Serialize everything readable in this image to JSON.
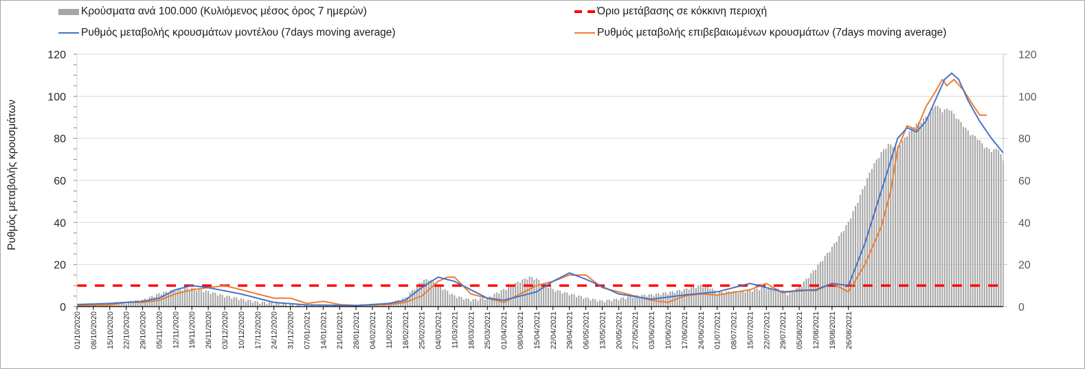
{
  "legend": {
    "bars": "Κρούσματα ανά 100.000 (Κυλιόμενος μέσος όρος 7 ημερών)",
    "model": "Ρυθμός μεταβολής κρουσμάτων μοντέλου (7days moving average)",
    "threshold": "Όριο μετάβασης σε κόκκινη περιοχή",
    "confirmed": "Ρυθμός μεταβολής επιβεβαιωμένων κρουσμάτων (7days moving average)"
  },
  "colors": {
    "bars": "#a5a5a5",
    "model": "#4472c4",
    "confirmed": "#ed7d31",
    "threshold": "#ff0000",
    "grid": "#d9d9d9"
  },
  "chart_data": {
    "type": "bar+line",
    "title": "",
    "xlabel": "",
    "ylabel": "Ρυθμός μεταβολής κρουσμάτων",
    "ylim": [
      0,
      120
    ],
    "y2lim": [
      0,
      120
    ],
    "yticks": [
      0,
      20,
      40,
      60,
      80,
      100,
      120
    ],
    "y2ticks": [
      0,
      20,
      40,
      60,
      80,
      100,
      120
    ],
    "grid": true,
    "legend_position": "top",
    "x_start": "01/10/2020",
    "x_step_days": 7,
    "x_tick_labels": [
      "01/10/2020",
      "08/10/2020",
      "15/10/2020",
      "22/10/2020",
      "29/10/2020",
      "05/11/2020",
      "12/11/2020",
      "19/11/2020",
      "26/11/2020",
      "03/12/2020",
      "10/12/2020",
      "17/12/2020",
      "24/12/2020",
      "31/12/2020",
      "07/01/2021",
      "14/01/2021",
      "21/01/2021",
      "28/01/2021",
      "04/02/2021",
      "11/02/2021",
      "18/02/2021",
      "25/02/2021",
      "04/03/2021",
      "11/03/2021",
      "18/03/2021",
      "25/03/2021",
      "01/04/2021",
      "08/04/2021",
      "15/04/2021",
      "22/04/2021",
      "29/04/2021",
      "06/05/2021",
      "13/05/2021",
      "20/05/2021",
      "27/05/2021",
      "03/06/2021",
      "10/06/2021",
      "17/06/2021",
      "24/06/2021",
      "01/07/2021",
      "08/07/2021",
      "15/07/2021",
      "22/07/2021",
      "29/07/2021",
      "05/08/2021",
      "12/08/2021",
      "19/08/2021",
      "26/08/2021"
    ],
    "total_days": 336,
    "series": [
      {
        "name": "Κρούσματα ανά 100.000 (Κυλιόμενος μέσος όρος 7 ημερών)",
        "type": "bar",
        "axis": "right",
        "points_day_value": [
          [
            0,
            0.3
          ],
          [
            7,
            0.5
          ],
          [
            14,
            1.5
          ],
          [
            21,
            2
          ],
          [
            28,
            3
          ],
          [
            35,
            6
          ],
          [
            42,
            8
          ],
          [
            49,
            8.5
          ],
          [
            56,
            7
          ],
          [
            63,
            5
          ],
          [
            70,
            3.5
          ],
          [
            77,
            2
          ],
          [
            84,
            1.5
          ],
          [
            91,
            0.8
          ],
          [
            98,
            0.5
          ],
          [
            105,
            0.4
          ],
          [
            112,
            0.4
          ],
          [
            119,
            0.6
          ],
          [
            126,
            0.8
          ],
          [
            133,
            1.2
          ],
          [
            140,
            4
          ],
          [
            147,
            12
          ],
          [
            150,
            13
          ],
          [
            154,
            10
          ],
          [
            161,
            5
          ],
          [
            168,
            3
          ],
          [
            175,
            4
          ],
          [
            182,
            8
          ],
          [
            189,
            12
          ],
          [
            193,
            14
          ],
          [
            196,
            13
          ],
          [
            203,
            8
          ],
          [
            210,
            6
          ],
          [
            217,
            4
          ],
          [
            224,
            2.5
          ],
          [
            231,
            3.5
          ],
          [
            238,
            5
          ],
          [
            245,
            5.5
          ],
          [
            252,
            6.5
          ],
          [
            259,
            8
          ],
          [
            266,
            10
          ],
          [
            270,
            9
          ],
          [
            273,
            6.5
          ],
          [
            280,
            7
          ],
          [
            287,
            7.5
          ],
          [
            294,
            9
          ],
          [
            300,
            8
          ],
          [
            303,
            6
          ],
          [
            308,
            9
          ],
          [
            315,
            18
          ],
          [
            322,
            28
          ],
          [
            329,
            40
          ],
          [
            333,
            50
          ],
          [
            336,
            58
          ],
          [
            339,
            66
          ],
          [
            343,
            73
          ],
          [
            346,
            77
          ],
          [
            350,
            76
          ],
          [
            353,
            80
          ],
          [
            357,
            86
          ],
          [
            360,
            88
          ],
          [
            364,
            92
          ],
          [
            366,
            96
          ],
          [
            369,
            93
          ],
          [
            372,
            94
          ],
          [
            375,
            90
          ],
          [
            378,
            86
          ],
          [
            381,
            82
          ],
          [
            384,
            80
          ],
          [
            387,
            76
          ],
          [
            390,
            74
          ],
          [
            393,
            75
          ],
          [
            395,
            69
          ]
        ]
      },
      {
        "name": "Ρυθμός μεταβολής κρουσμάτων μοντέλου (7days moving average)",
        "type": "line",
        "axis": "left",
        "points_day_value": [
          [
            0,
            1
          ],
          [
            14,
            1.5
          ],
          [
            28,
            2.5
          ],
          [
            35,
            4
          ],
          [
            42,
            8
          ],
          [
            49,
            10
          ],
          [
            56,
            9
          ],
          [
            70,
            6
          ],
          [
            84,
            2
          ],
          [
            98,
            0.8
          ],
          [
            119,
            0.5
          ],
          [
            133,
            1.5
          ],
          [
            140,
            3
          ],
          [
            147,
            9
          ],
          [
            154,
            14
          ],
          [
            161,
            12
          ],
          [
            175,
            4
          ],
          [
            182,
            3
          ],
          [
            196,
            7
          ],
          [
            203,
            12
          ],
          [
            210,
            16
          ],
          [
            217,
            13
          ],
          [
            231,
            6
          ],
          [
            245,
            3.5
          ],
          [
            259,
            5.5
          ],
          [
            273,
            7
          ],
          [
            287,
            11
          ],
          [
            294,
            9
          ],
          [
            301,
            7
          ],
          [
            315,
            8
          ],
          [
            322,
            11
          ],
          [
            329,
            10
          ],
          [
            336,
            30
          ],
          [
            343,
            55
          ],
          [
            350,
            80
          ],
          [
            354,
            85
          ],
          [
            358,
            83
          ],
          [
            362,
            88
          ],
          [
            366,
            98
          ],
          [
            370,
            108
          ],
          [
            373,
            111
          ],
          [
            376,
            108
          ],
          [
            380,
            98
          ],
          [
            385,
            88
          ],
          [
            390,
            80
          ],
          [
            395,
            73
          ]
        ]
      },
      {
        "name": "Ρυθμός μεταβολής επιβεβαιωμένων κρουσμάτων (7days moving average)",
        "type": "line",
        "axis": "left",
        "points_day_value": [
          [
            0,
            0.5
          ],
          [
            14,
            0.8
          ],
          [
            21,
            2
          ],
          [
            28,
            2
          ],
          [
            35,
            3
          ],
          [
            42,
            6
          ],
          [
            49,
            8
          ],
          [
            56,
            9
          ],
          [
            63,
            10
          ],
          [
            70,
            8
          ],
          [
            77,
            6
          ],
          [
            84,
            4
          ],
          [
            91,
            4
          ],
          [
            98,
            1.5
          ],
          [
            105,
            2.5
          ],
          [
            112,
            1
          ],
          [
            119,
            0.5
          ],
          [
            133,
            1
          ],
          [
            140,
            2
          ],
          [
            147,
            5
          ],
          [
            154,
            12
          ],
          [
            158,
            14
          ],
          [
            161,
            14
          ],
          [
            168,
            6
          ],
          [
            175,
            4
          ],
          [
            182,
            2
          ],
          [
            196,
            10
          ],
          [
            203,
            12
          ],
          [
            210,
            15
          ],
          [
            217,
            15
          ],
          [
            224,
            9
          ],
          [
            231,
            7
          ],
          [
            245,
            3
          ],
          [
            252,
            2
          ],
          [
            259,
            5
          ],
          [
            266,
            6
          ],
          [
            273,
            5.5
          ],
          [
            287,
            8
          ],
          [
            294,
            11
          ],
          [
            301,
            6.5
          ],
          [
            308,
            8
          ],
          [
            315,
            7.5
          ],
          [
            322,
            11
          ],
          [
            329,
            7
          ],
          [
            336,
            20
          ],
          [
            343,
            38
          ],
          [
            347,
            55
          ],
          [
            350,
            75
          ],
          [
            354,
            86
          ],
          [
            358,
            84
          ],
          [
            362,
            95
          ],
          [
            366,
            102
          ],
          [
            369,
            108
          ],
          [
            371,
            105
          ],
          [
            374,
            108
          ],
          [
            378,
            103
          ],
          [
            382,
            96
          ],
          [
            385,
            91
          ],
          [
            388,
            91
          ]
        ]
      },
      {
        "name": "Όριο μετάβασης σε κόκκινη περιοχή",
        "type": "line",
        "style": "dashed",
        "axis": "left",
        "value": 10
      }
    ]
  }
}
